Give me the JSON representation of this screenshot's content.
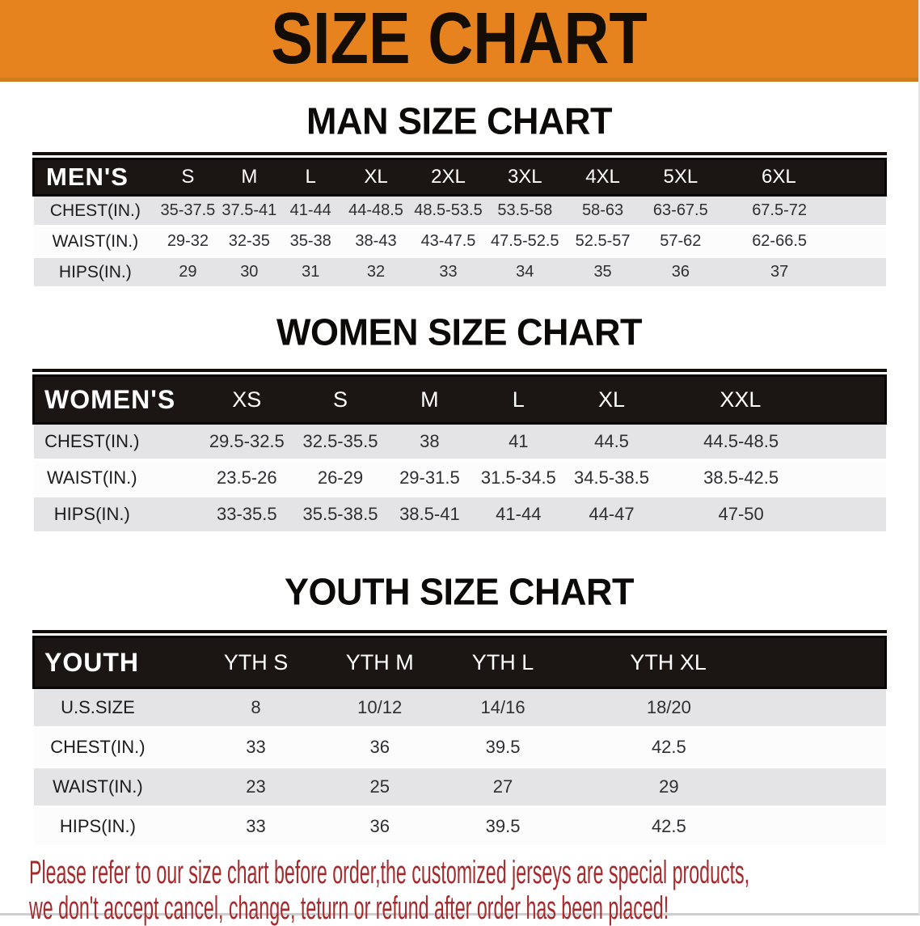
{
  "banner": {
    "title": "SIZE CHART"
  },
  "colors": {
    "banner_bg": "#e6831e",
    "banner_text": "#140d05",
    "table_header_bg": "#1b1613",
    "table_header_text": "#ffffff",
    "row_stripe_gray": "#e4e4e6",
    "row_stripe_white": "#fcfcfd",
    "disclaimer_red": "#a62a2c"
  },
  "disclaimer": {
    "lines": [
      "Please refer to our size chart before order,the customized jerseys are special products,",
      "we don't accept cancel, change, teturn or refund after order has been placed!"
    ]
  },
  "chart_data": [
    {
      "type": "table",
      "title": "MAN SIZE CHART",
      "columns": [
        "MEN'S",
        "S",
        "M",
        "L",
        "XL",
        "2XL",
        "3XL",
        "4XL",
        "5XL",
        "6XL"
      ],
      "rows": [
        [
          "CHEST(IN.)",
          "35-37.5",
          "37.5-41",
          "41-44",
          "44-48.5",
          "48.5-53.5",
          "53.5-58",
          "58-63",
          "63-67.5",
          "67.5-72"
        ],
        [
          "WAIST(IN.)",
          "29-32",
          "32-35",
          "35-38",
          "38-43",
          "43-47.5",
          "47.5-52.5",
          "52.5-57",
          "57-62",
          "62-66.5"
        ],
        [
          "HIPS(IN.)",
          "29",
          "30",
          "31",
          "32",
          "33",
          "34",
          "35",
          "36",
          "37"
        ]
      ]
    },
    {
      "type": "table",
      "title": "WOMEN SIZE CHART",
      "columns": [
        "WOMEN'S",
        "XS",
        "S",
        "M",
        "L",
        "XL",
        "XXL"
      ],
      "rows": [
        [
          "CHEST(IN.)",
          "29.5-32.5",
          "32.5-35.5",
          "38",
          "41",
          "44.5",
          "44.5-48.5"
        ],
        [
          "WAIST(IN.)",
          "23.5-26",
          "26-29",
          "29-31.5",
          "31.5-34.5",
          "34.5-38.5",
          "38.5-42.5"
        ],
        [
          "HIPS(IN.)",
          "33-35.5",
          "35.5-38.5",
          "38.5-41",
          "41-44",
          "44-47",
          "47-50"
        ]
      ]
    },
    {
      "type": "table",
      "title": "YOUTH SIZE CHART",
      "columns": [
        "YOUTH",
        "YTH S",
        "YTH M",
        "YTH L",
        "YTH XL"
      ],
      "rows": [
        [
          "U.S.SIZE",
          "8",
          "10/12",
          "14/16",
          "18/20"
        ],
        [
          "CHEST(IN.)",
          "33",
          "36",
          "39.5",
          "42.5"
        ],
        [
          "WAIST(IN.)",
          "23",
          "25",
          "27",
          "29"
        ],
        [
          "HIPS(IN.)",
          "33",
          "36",
          "39.5",
          "42.5"
        ]
      ]
    }
  ]
}
